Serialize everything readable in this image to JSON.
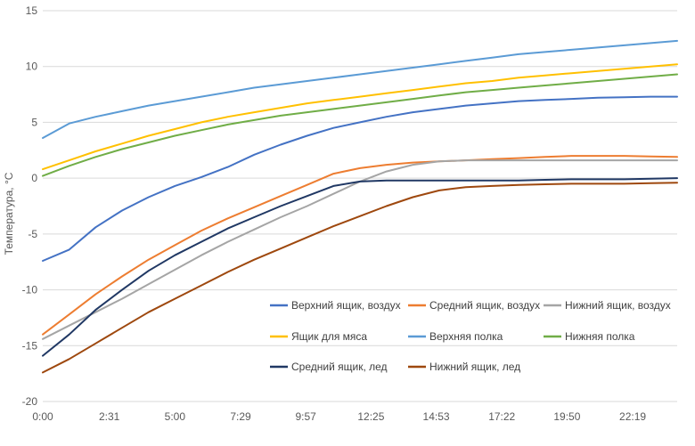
{
  "chart_data": {
    "type": "line",
    "title": "",
    "xlabel": "",
    "ylabel": "Температура, °C",
    "xlim": [
      0,
      1440
    ],
    "ylim": [
      -20,
      15
    ],
    "x_unit": "minutes",
    "y_ticks": [
      -20,
      -15,
      -10,
      -5,
      0,
      5,
      10,
      15
    ],
    "x_ticks": [
      {
        "value": 0,
        "label": "0:00"
      },
      {
        "value": 151,
        "label": "2:31"
      },
      {
        "value": 300,
        "label": "5:00"
      },
      {
        "value": 449,
        "label": "7:29"
      },
      {
        "value": 597,
        "label": "9:57"
      },
      {
        "value": 745,
        "label": "12:25"
      },
      {
        "value": 893,
        "label": "14:53"
      },
      {
        "value": 1042,
        "label": "17:22"
      },
      {
        "value": 1190,
        "label": "19:50"
      },
      {
        "value": 1339,
        "label": "22:19"
      }
    ],
    "grid": {
      "horizontal": true,
      "vertical": false
    },
    "legend_position": "bottom-right",
    "x": [
      0,
      60,
      120,
      180,
      240,
      300,
      360,
      420,
      480,
      540,
      600,
      660,
      720,
      780,
      840,
      900,
      960,
      1020,
      1080,
      1140,
      1200,
      1260,
      1320,
      1380,
      1440
    ],
    "series": [
      {
        "name": "Верхний ящик, воздух",
        "color": "#4472C4",
        "values": [
          -7.4,
          -6.4,
          -4.4,
          -2.9,
          -1.7,
          -0.7,
          0.1,
          1.0,
          2.1,
          3.0,
          3.8,
          4.5,
          5.0,
          5.5,
          5.9,
          6.2,
          6.5,
          6.7,
          6.9,
          7.0,
          7.1,
          7.2,
          7.25,
          7.3,
          7.3
        ]
      },
      {
        "name": "Средний ящик, воздух",
        "color": "#ED7D31",
        "values": [
          -14.0,
          -12.2,
          -10.4,
          -8.8,
          -7.3,
          -6.0,
          -4.7,
          -3.6,
          -2.6,
          -1.6,
          -0.6,
          0.4,
          0.9,
          1.2,
          1.4,
          1.5,
          1.6,
          1.7,
          1.8,
          1.9,
          2.0,
          2.0,
          2.0,
          1.95,
          1.9
        ]
      },
      {
        "name": "Нижний ящик, воздух",
        "color": "#A5A5A5",
        "values": [
          -14.4,
          -13.2,
          -12.0,
          -10.8,
          -9.5,
          -8.2,
          -6.9,
          -5.7,
          -4.6,
          -3.5,
          -2.5,
          -1.4,
          -0.3,
          0.6,
          1.2,
          1.5,
          1.6,
          1.6,
          1.6,
          1.6,
          1.6,
          1.6,
          1.6,
          1.6,
          1.6
        ]
      },
      {
        "name": "Ящик для мяса",
        "color": "#FFC000",
        "values": [
          0.8,
          1.6,
          2.4,
          3.1,
          3.8,
          4.4,
          5.0,
          5.5,
          5.9,
          6.3,
          6.7,
          7.0,
          7.3,
          7.6,
          7.9,
          8.2,
          8.5,
          8.7,
          9.0,
          9.2,
          9.4,
          9.6,
          9.8,
          10.0,
          10.2
        ]
      },
      {
        "name": "Верхняя полка",
        "color": "#5B9BD5",
        "values": [
          3.6,
          4.9,
          5.5,
          6.0,
          6.5,
          6.9,
          7.3,
          7.7,
          8.1,
          8.4,
          8.7,
          9.0,
          9.3,
          9.6,
          9.9,
          10.2,
          10.5,
          10.8,
          11.1,
          11.3,
          11.5,
          11.7,
          11.9,
          12.1,
          12.3
        ]
      },
      {
        "name": "Нижняя полка",
        "color": "#70AD47",
        "values": [
          0.2,
          1.1,
          1.9,
          2.6,
          3.2,
          3.8,
          4.3,
          4.8,
          5.2,
          5.6,
          5.9,
          6.2,
          6.5,
          6.8,
          7.1,
          7.4,
          7.7,
          7.9,
          8.1,
          8.3,
          8.5,
          8.7,
          8.9,
          9.1,
          9.3
        ]
      },
      {
        "name": "Средний ящик, лед",
        "color": "#203864",
        "values": [
          -15.9,
          -14.0,
          -11.8,
          -10.0,
          -8.3,
          -6.9,
          -5.7,
          -4.5,
          -3.5,
          -2.5,
          -1.6,
          -0.7,
          -0.3,
          -0.2,
          -0.2,
          -0.2,
          -0.2,
          -0.2,
          -0.2,
          -0.15,
          -0.1,
          -0.1,
          -0.1,
          -0.05,
          0.0
        ]
      },
      {
        "name": "Нижний ящик, лед",
        "color": "#9E480E",
        "values": [
          -17.4,
          -16.2,
          -14.8,
          -13.4,
          -12.0,
          -10.8,
          -9.6,
          -8.4,
          -7.3,
          -6.3,
          -5.3,
          -4.3,
          -3.4,
          -2.5,
          -1.7,
          -1.1,
          -0.8,
          -0.7,
          -0.6,
          -0.55,
          -0.5,
          -0.5,
          -0.5,
          -0.45,
          -0.4
        ]
      }
    ]
  }
}
